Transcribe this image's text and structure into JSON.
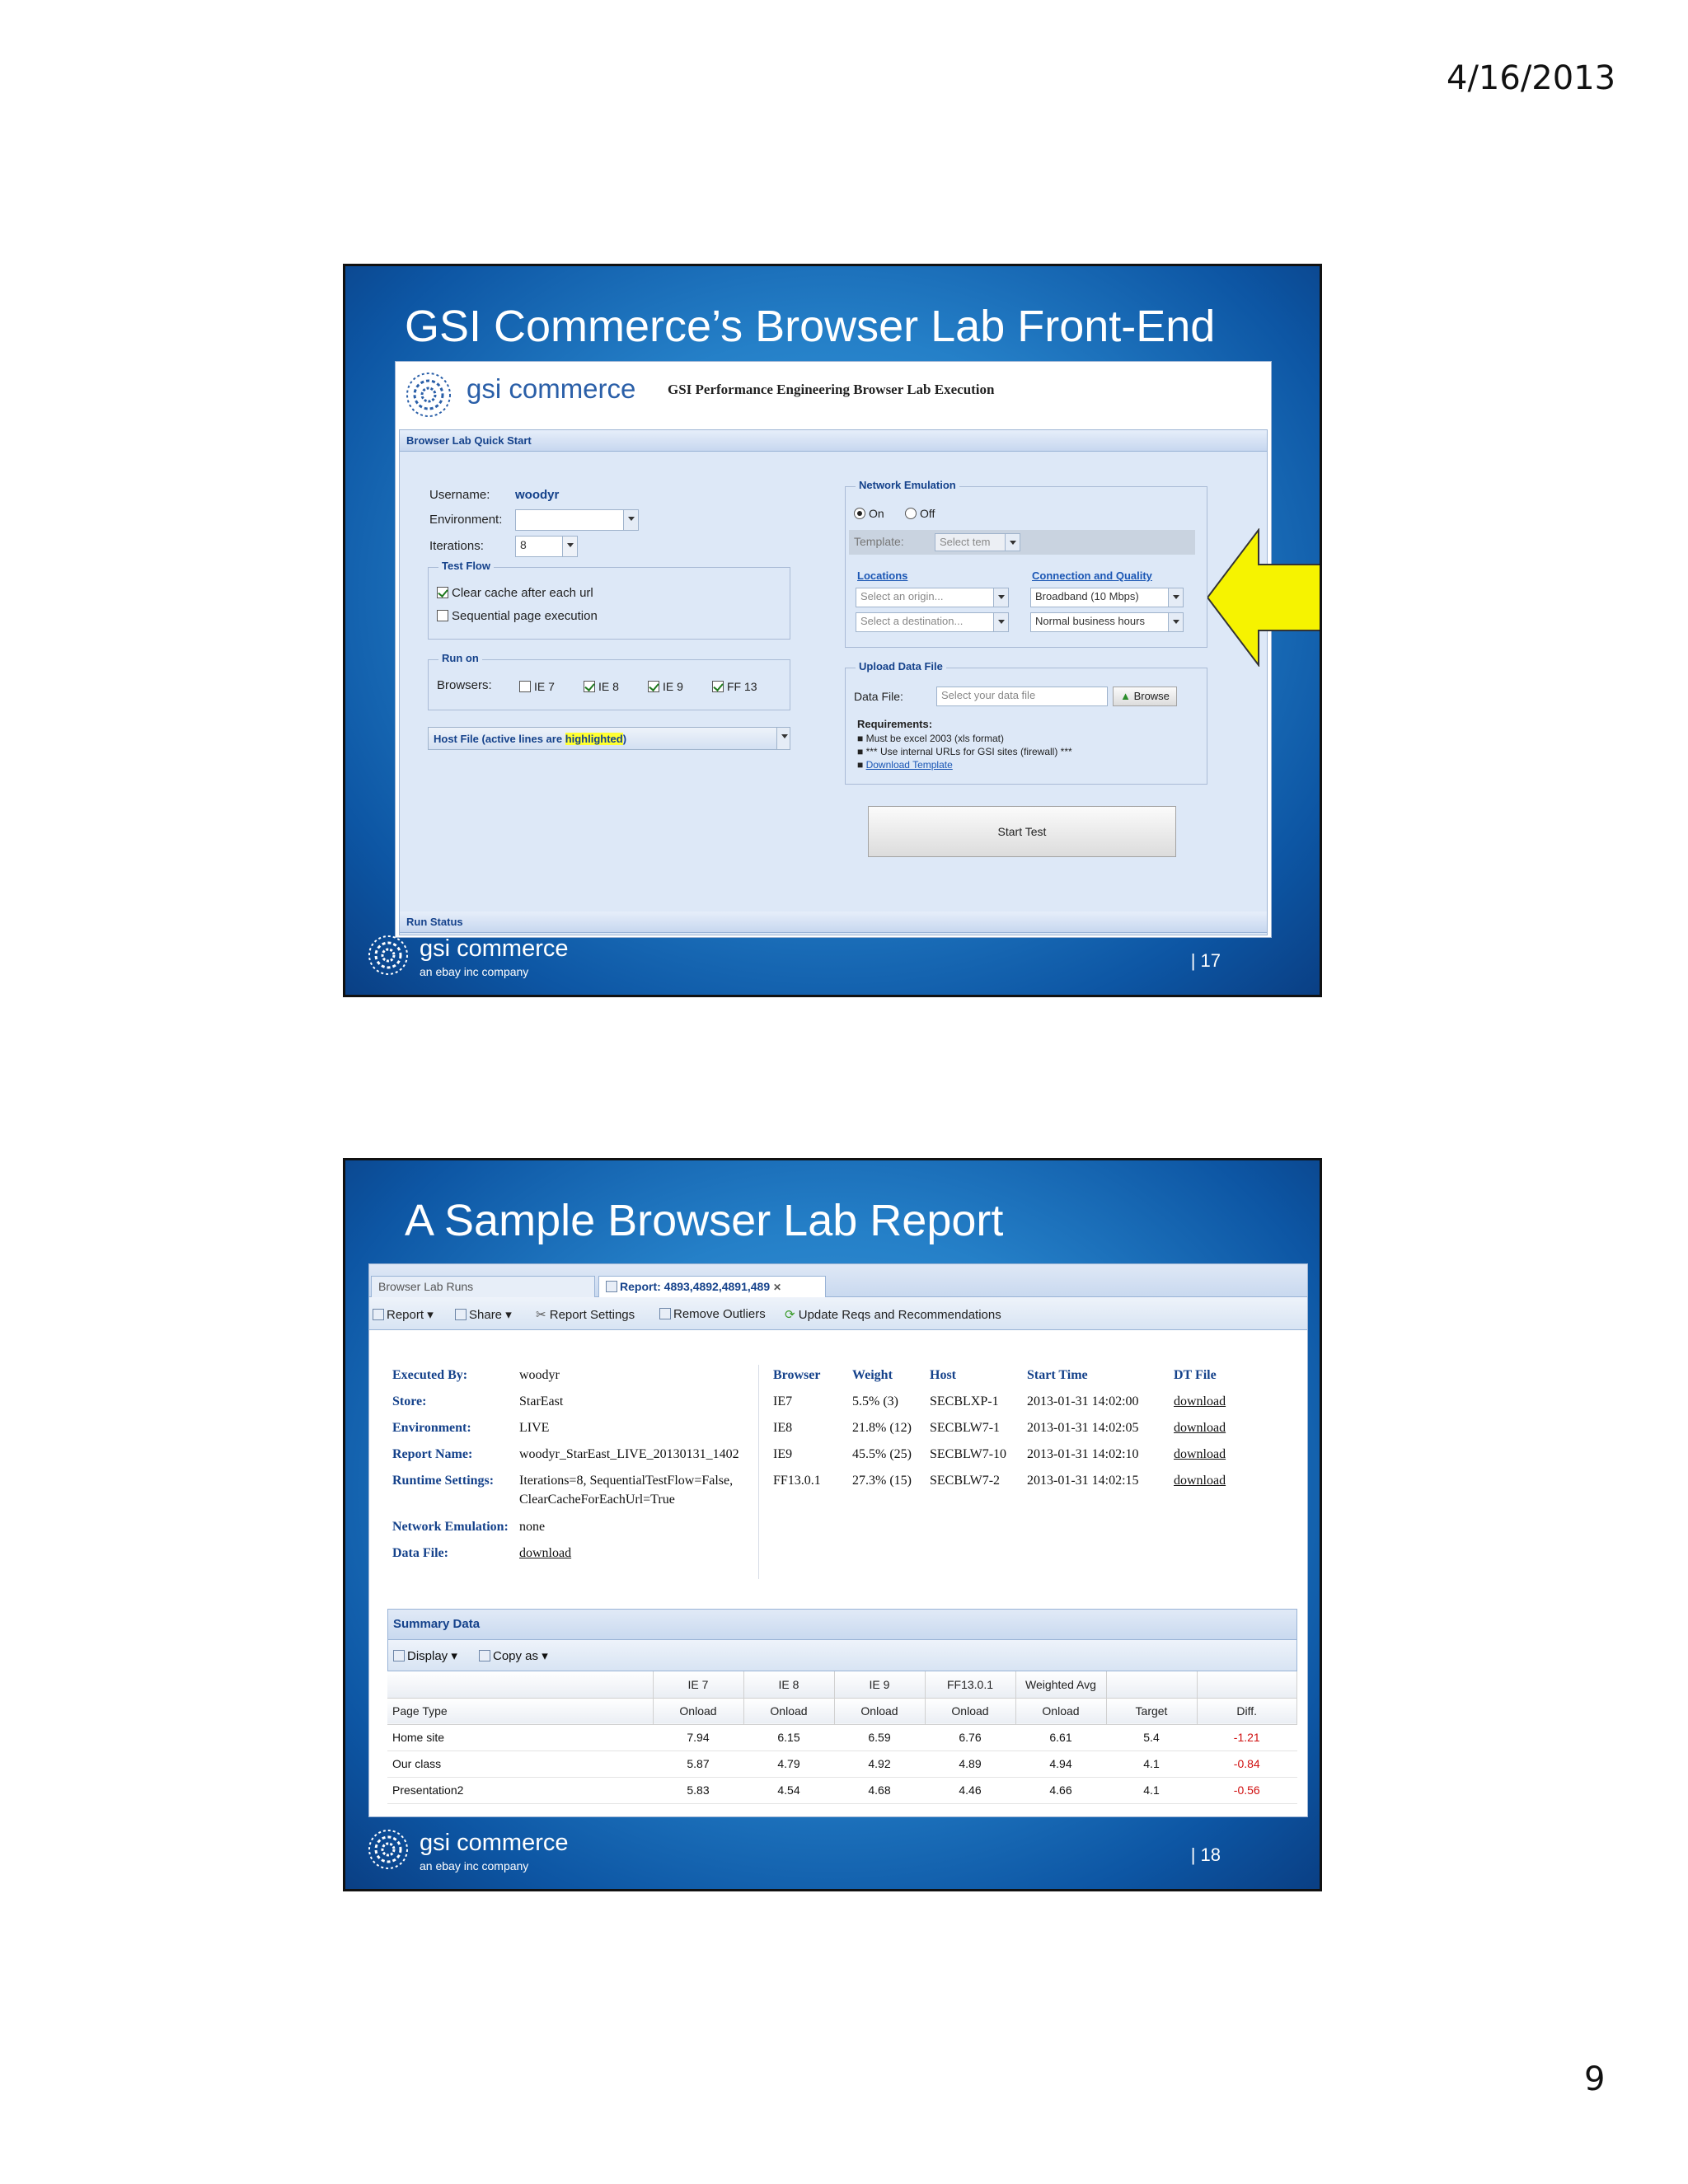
{
  "page": {
    "date": "4/16/2013",
    "page_number": "9"
  },
  "footer": {
    "brand": "gsi commerce",
    "sub": "an ebay inc company"
  },
  "slide1": {
    "title": "GSI Commerce’s Browser Lab Front-End",
    "slide_number": "| 17",
    "app": {
      "logo_text": "gsi commerce",
      "app_name": "GSI Performance Engineering Browser Lab Execution",
      "quick_start": "Browser Lab Quick Start",
      "username_label": "Username:",
      "username_value": "woodyr",
      "environment_label": "Environment:",
      "iterations_label": "Iterations:",
      "iterations_value": "8",
      "test_flow_legend": "Test Flow",
      "clear_cache": "Clear cache after each url",
      "sequential": "Sequential page execution",
      "run_on_legend": "Run on",
      "browsers_label": "Browsers:",
      "browsers": [
        "IE 7",
        "IE 8",
        "IE 9",
        "FF 13"
      ],
      "host_file_prefix": "Host File (active lines are ",
      "host_file_highlight": "highlighted",
      "host_file_suffix": ")",
      "network_legend": "Network Emulation",
      "on": "On",
      "off": "Off",
      "template_label": "Template:",
      "template_placeholder": "Select tem",
      "locations_header": "Locations",
      "connection_header": "Connection and Quality",
      "origin_placeholder": "Select an origin...",
      "destination_placeholder": "Select a destination...",
      "bandwidth": "Broadband (10 Mbps)",
      "hours": "Normal business hours",
      "upload_legend": "Upload Data File",
      "data_file_label": "Data File:",
      "data_file_placeholder": "Select your data file",
      "browse": "Browse",
      "requirements": "Requirements:",
      "req1": "Must be excel 2003 (xls format)",
      "req2": "*** Use internal URLs for GSI sites (firewall) ***",
      "req3": "Download Template",
      "start_test": "Start Test",
      "run_status": "Run Status"
    }
  },
  "slide2": {
    "title": "A Sample Browser Lab Report",
    "slide_number": "| 18",
    "tabs": [
      "Browser Lab Runs",
      "Report: 4893,4892,4891,489"
    ],
    "toolbar": [
      "Report",
      "Share",
      "Report Settings",
      "Remove Outliers",
      "Update Reqs and Recommendations"
    ],
    "meta": [
      {
        "key": "Executed By:",
        "value": "woodyr"
      },
      {
        "key": "Store:",
        "value": "StarEast"
      },
      {
        "key": "Environment:",
        "value": "LIVE"
      },
      {
        "key": "Report Name:",
        "value": "woodyr_StarEast_LIVE_20130131_1402"
      },
      {
        "key": "Runtime Settings:",
        "value": "Iterations=8, SequentialTestFlow=False,",
        "value2": "ClearCacheForEachUrl=True"
      },
      {
        "key": "Network Emulation:",
        "value": "none"
      },
      {
        "key": "Data File:",
        "value": "download"
      }
    ],
    "runs_header": [
      "Browser",
      "Weight",
      "Host",
      "Start Time",
      "DT File"
    ],
    "runs": [
      [
        "IE7",
        "5.5% (3)",
        "SECBLXP-1",
        "2013-01-31 14:02:00",
        "download"
      ],
      [
        "IE8",
        "21.8% (12)",
        "SECBLW7-1",
        "2013-01-31 14:02:05",
        "download"
      ],
      [
        "IE9",
        "45.5% (25)",
        "SECBLW7-10",
        "2013-01-31 14:02:10",
        "download"
      ],
      [
        "FF13.0.1",
        "27.3% (15)",
        "SECBLW7-2",
        "2013-01-31 14:02:15",
        "download"
      ]
    ],
    "summary_title": "Summary Data",
    "summary_tools": [
      "Display",
      "Copy as"
    ],
    "summary_groups": [
      "IE 7",
      "IE 8",
      "IE 9",
      "FF13.0.1",
      "Weighted Avg"
    ],
    "summary_cols": [
      "Page Type",
      "Onload",
      "Onload",
      "Onload",
      "Onload",
      "Onload",
      "Target",
      "Diff."
    ],
    "summary_rows": [
      [
        "Home site",
        "7.94",
        "6.15",
        "6.59",
        "6.76",
        "6.61",
        "5.4",
        "-1.21"
      ],
      [
        "Our class",
        "5.87",
        "4.79",
        "4.92",
        "4.89",
        "4.94",
        "4.1",
        "-0.84"
      ],
      [
        "Presentation2",
        "5.83",
        "4.54",
        "4.68",
        "4.46",
        "4.66",
        "4.1",
        "-0.56"
      ]
    ],
    "colors": {
      "negative": "#d01010",
      "header_blue": "#15428b"
    }
  }
}
